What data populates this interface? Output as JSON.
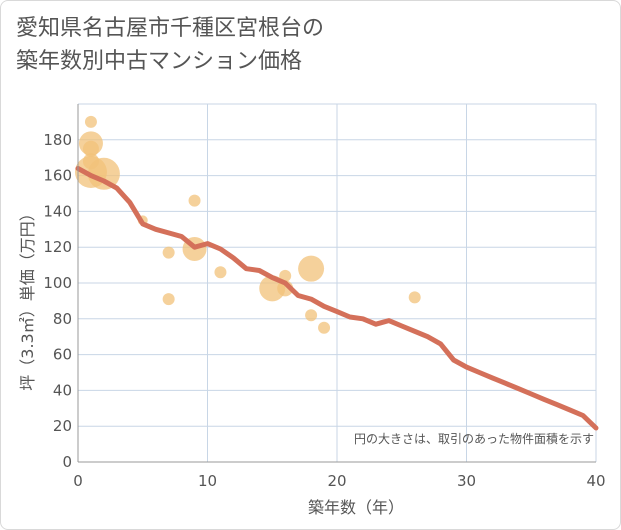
{
  "title": {
    "line1": "愛知県名古屋市千種区宮根台の",
    "line2": "築年数別中古マンション価格"
  },
  "colors": {
    "bubble": "#f2c27a",
    "line": "#d4705a",
    "grid": "#c8d6e6",
    "axis": "#999999",
    "text": "#555555"
  },
  "chart_data": {
    "type": "scatter",
    "xlabel": "築年数（年）",
    "ylabel": "坪（3.3㎡）単価（万円）",
    "xlim": [
      0,
      40
    ],
    "ylim": [
      0,
      200
    ],
    "xticks": [
      0,
      10,
      20,
      30,
      40
    ],
    "yticks": [
      0,
      20,
      40,
      60,
      80,
      100,
      120,
      140,
      160,
      180
    ],
    "grid": true,
    "note": "円の大きさは、取引のあった物件面積を示す",
    "points": [
      {
        "x": 1,
        "y": 190,
        "size": 6
      },
      {
        "x": 1,
        "y": 178,
        "size": 12
      },
      {
        "x": 1,
        "y": 175,
        "size": 8
      },
      {
        "x": 1,
        "y": 162,
        "size": 16
      },
      {
        "x": 1,
        "y": 168,
        "size": 8
      },
      {
        "x": 2,
        "y": 161,
        "size": 16
      },
      {
        "x": 5,
        "y": 135,
        "size": 5
      },
      {
        "x": 7,
        "y": 117,
        "size": 6
      },
      {
        "x": 7,
        "y": 91,
        "size": 6
      },
      {
        "x": 9,
        "y": 146,
        "size": 6
      },
      {
        "x": 9,
        "y": 119,
        "size": 12
      },
      {
        "x": 11,
        "y": 106,
        "size": 6
      },
      {
        "x": 15,
        "y": 97,
        "size": 13
      },
      {
        "x": 16,
        "y": 104,
        "size": 6
      },
      {
        "x": 16,
        "y": 97,
        "size": 8
      },
      {
        "x": 18,
        "y": 108,
        "size": 13
      },
      {
        "x": 18,
        "y": 82,
        "size": 6
      },
      {
        "x": 19,
        "y": 75,
        "size": 6
      },
      {
        "x": 26,
        "y": 92,
        "size": 6
      }
    ],
    "trend": {
      "x": [
        0,
        1,
        2,
        3,
        4,
        5,
        6,
        7,
        8,
        9,
        10,
        11,
        12,
        13,
        14,
        15,
        16,
        17,
        18,
        19,
        20,
        21,
        22,
        23,
        24,
        25,
        26,
        27,
        28,
        29,
        30,
        31,
        32,
        33,
        34,
        35,
        36,
        37,
        38,
        39,
        40
      ],
      "y": [
        164,
        160,
        157,
        153,
        145,
        133,
        130,
        128,
        126,
        120,
        122,
        119,
        114,
        108,
        107,
        103,
        100,
        93,
        91,
        87,
        84,
        81,
        80,
        77,
        79,
        76,
        73,
        70,
        66,
        57,
        53,
        50,
        47,
        44,
        41,
        38,
        35,
        32,
        29,
        26,
        19
      ]
    }
  }
}
